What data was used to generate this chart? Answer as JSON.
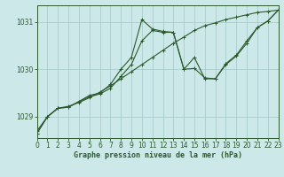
{
  "bg_color": "#cce8e8",
  "grid_color": "#aacccc",
  "line_color": "#2d5a2d",
  "xlabel": "Graphe pression niveau de la mer (hPa)",
  "xlim": [
    0,
    23
  ],
  "ylim": [
    1028.55,
    1031.35
  ],
  "yticks": [
    1029,
    1030,
    1031
  ],
  "xticks": [
    0,
    1,
    2,
    3,
    4,
    5,
    6,
    7,
    8,
    9,
    10,
    11,
    12,
    13,
    14,
    15,
    16,
    17,
    18,
    19,
    20,
    21,
    22,
    23
  ],
  "series1_x": [
    0,
    1,
    2,
    3,
    4,
    5,
    6,
    7,
    8,
    9,
    10,
    11,
    12,
    13,
    14,
    15,
    16,
    17,
    18,
    19,
    20,
    21,
    22,
    23
  ],
  "series1_y": [
    1028.7,
    1029.0,
    1029.18,
    1029.22,
    1029.3,
    1029.4,
    1029.52,
    1029.65,
    1029.8,
    1029.95,
    1030.1,
    1030.25,
    1030.4,
    1030.55,
    1030.68,
    1030.82,
    1030.92,
    1030.98,
    1031.05,
    1031.1,
    1031.15,
    1031.2,
    1031.22,
    1031.25
  ],
  "series2_x": [
    0,
    1,
    2,
    3,
    4,
    5,
    6,
    7,
    8,
    9,
    10,
    11,
    12,
    13,
    14,
    15,
    16,
    17,
    18,
    19,
    20,
    21,
    22,
    23
  ],
  "series2_y": [
    1028.65,
    1029.0,
    1029.18,
    1029.2,
    1029.32,
    1029.45,
    1029.5,
    1029.68,
    1030.0,
    1030.25,
    1031.05,
    1030.85,
    1030.8,
    1030.78,
    1030.0,
    1030.25,
    1029.8,
    1029.8,
    1030.12,
    1030.3,
    1030.6,
    1030.88,
    1031.02,
    1031.25
  ],
  "series3_x": [
    0,
    1,
    2,
    3,
    4,
    5,
    6,
    7,
    8,
    9,
    10,
    11,
    12,
    13,
    14,
    15,
    16,
    17,
    18,
    19,
    20,
    21,
    22,
    23
  ],
  "series3_y": [
    1028.65,
    1029.0,
    1029.18,
    1029.2,
    1029.32,
    1029.42,
    1029.48,
    1029.6,
    1029.85,
    1030.1,
    1030.6,
    1030.82,
    1030.78,
    1030.78,
    1030.0,
    1030.02,
    1029.82,
    1029.8,
    1030.1,
    1030.28,
    1030.55,
    1030.88,
    1031.02,
    1031.25
  ],
  "tick_fontsize": 5.5,
  "xlabel_fontsize": 6.0
}
